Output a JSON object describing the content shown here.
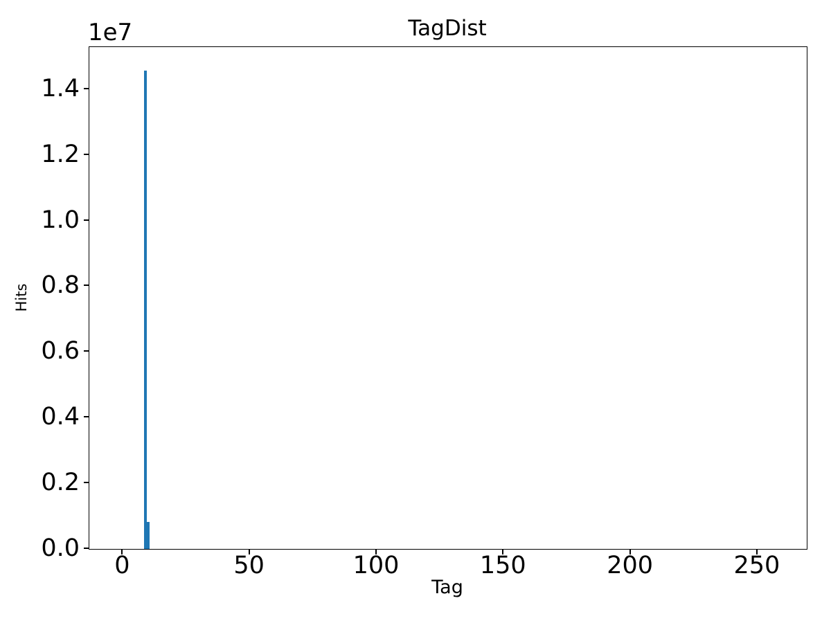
{
  "chart_data": {
    "type": "bar",
    "title": "TagDist",
    "xlabel": "Tag",
    "ylabel": "Hits",
    "y_offset_text": "1e7",
    "y_scale_factor": 10000000,
    "x_ticks": [
      {
        "value": 0,
        "label": "0"
      },
      {
        "value": 50,
        "label": "50"
      },
      {
        "value": 100,
        "label": "100"
      },
      {
        "value": 150,
        "label": "150"
      },
      {
        "value": 200,
        "label": "200"
      },
      {
        "value": 250,
        "label": "250"
      }
    ],
    "y_ticks": [
      {
        "value": 0,
        "label": "0.0"
      },
      {
        "value": 2000000,
        "label": "0.2"
      },
      {
        "value": 4000000,
        "label": "0.4"
      },
      {
        "value": 6000000,
        "label": "0.6"
      },
      {
        "value": 8000000,
        "label": "0.8"
      },
      {
        "value": 10000000,
        "label": "1.0"
      },
      {
        "value": 12000000,
        "label": "1.2"
      },
      {
        "value": 14000000,
        "label": "1.4"
      }
    ],
    "xlim": [
      -13.2,
      269.4
    ],
    "ylim": [
      0,
      15280000
    ],
    "grid": false,
    "legend": null,
    "bar_color": "#1f77b4",
    "bars": [
      {
        "x_from": 8.2,
        "x_to": 9.4,
        "x_center": 8.8,
        "value": 14560000
      },
      {
        "x_from": 9.4,
        "x_to": 10.4,
        "x_center": 9.9,
        "value": 820000
      }
    ]
  }
}
